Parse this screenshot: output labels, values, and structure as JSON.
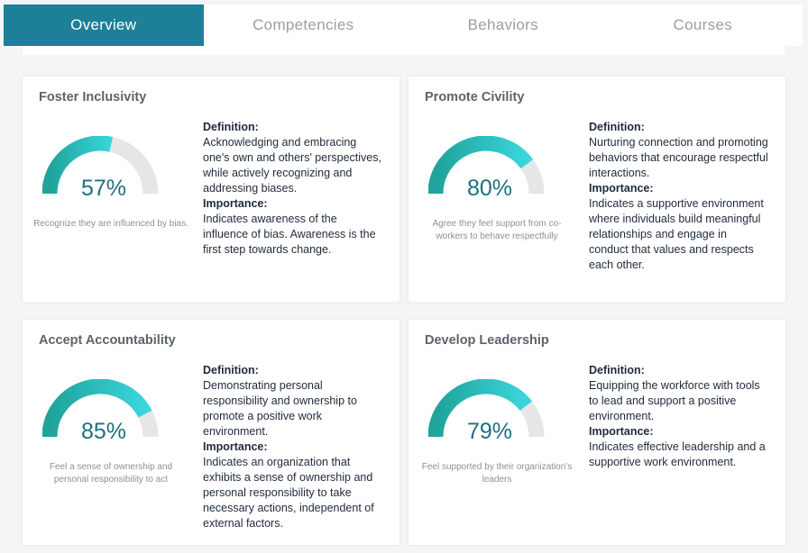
{
  "tabs": [
    {
      "label": "Overview",
      "active": true
    },
    {
      "label": "Competencies",
      "active": false
    },
    {
      "label": "Behaviors",
      "active": false
    },
    {
      "label": "Courses",
      "active": false
    }
  ],
  "labels": {
    "definition": "Definition:",
    "importance": "Importance:"
  },
  "colors": {
    "accent": "#1d7f98",
    "gauge_start": "#1fa39a",
    "gauge_end": "#3ad6dc",
    "gauge_track": "#e6e6e6"
  },
  "cards": [
    {
      "title": "Foster Inclusivity",
      "percent": 57,
      "value_label": "57%",
      "caption": "Recognize they are influenced by bias.",
      "definition": "Acknowledging and embracing one's own and others' perspectives, while actively recognizing and addressing biases.",
      "importance": "Indicates awareness of the influence of bias. Awareness is the first step towards change."
    },
    {
      "title": "Promote Civility",
      "percent": 80,
      "value_label": "80%",
      "caption": "Agree they feel support from co-workers to behave respectfully",
      "definition": "Nurturing connection and promoting behaviors that encourage respectful interactions.",
      "importance": "Indicates a supportive environment where individuals build meaningful relationships and engage in conduct that values and respects each other."
    },
    {
      "title": "Accept Accountability",
      "percent": 85,
      "value_label": "85%",
      "caption": "Feel a sense of ownership and personal responsibility to act",
      "definition": "Demonstrating personal responsibility and ownership to promote a positive work environment.",
      "importance": "Indicates an organization that exhibits a sense of ownership and personal responsibility to take necessary actions, independent of external factors."
    },
    {
      "title": "Develop Leadership",
      "percent": 79,
      "value_label": "79%",
      "caption": "Feel supported by their organization's leaders",
      "definition": "Equipping the workforce with tools to lead and support a positive environment.",
      "importance": "Indicates effective leadership and a supportive work environment."
    }
  ]
}
